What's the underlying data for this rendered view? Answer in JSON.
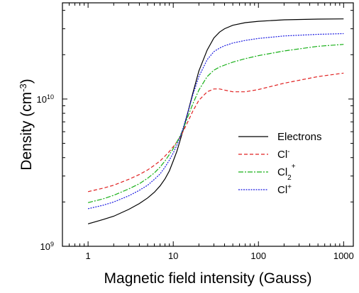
{
  "chart_data": {
    "type": "line",
    "title": "",
    "xlabel": "Magnetic field intensity (Gauss)",
    "ylabel": {
      "base": "Density (cm",
      "sup": "-3",
      "close": ")"
    },
    "xscale": "log",
    "yscale": "log",
    "xlim": [
      0.5,
      1300
    ],
    "ylim": [
      1000000000.0,
      45000000000.0
    ],
    "x_ticks": [
      {
        "value": 1,
        "label": "1"
      },
      {
        "value": 10,
        "label": "10"
      },
      {
        "value": 100,
        "label": "100"
      },
      {
        "value": 1000,
        "label": "1000"
      }
    ],
    "y_ticks": [
      {
        "value": 1000000000.0,
        "base": "10",
        "exp": "9"
      },
      {
        "value": 10000000000.0,
        "base": "10",
        "exp": "10"
      }
    ],
    "grid": false,
    "legend_position": "lower-right",
    "series": [
      {
        "legend": {
          "base": "Electrons",
          "sub": "",
          "sup": ""
        },
        "color": "#000000",
        "dash": "solid",
        "x": [
          1,
          1.5,
          2,
          3,
          4,
          5,
          6,
          7,
          8,
          9,
          10,
          11,
          12,
          13,
          15,
          17,
          20,
          25,
          30,
          35,
          40,
          50,
          70,
          100,
          200,
          500,
          1000
        ],
        "y": [
          1420000000.0,
          1520000000.0,
          1600000000.0,
          1780000000.0,
          1950000000.0,
          2130000000.0,
          2330000000.0,
          2570000000.0,
          2870000000.0,
          3250000000.0,
          3800000000.0,
          4400000000.0,
          5200000000.0,
          6100000000.0,
          8300000000.0,
          11000000000.0,
          15500000000.0,
          21500000000.0,
          26000000000.0,
          28500000000.0,
          30000000000.0,
          31700000000.0,
          33000000000.0,
          33700000000.0,
          34500000000.0,
          34900000000.0,
          35000000000.0
        ]
      },
      {
        "legend": {
          "base": "Cl",
          "sub": "",
          "sup": "-"
        },
        "color": "#e02020",
        "dash": "dashed",
        "x": [
          1,
          1.5,
          2,
          3,
          4,
          5,
          6,
          7,
          8,
          9,
          10,
          11,
          12,
          13,
          15,
          17,
          20,
          25,
          30,
          35,
          40,
          50,
          70,
          100,
          200,
          500,
          1000
        ],
        "y": [
          2350000000.0,
          2480000000.0,
          2600000000.0,
          2850000000.0,
          3070000000.0,
          3300000000.0,
          3550000000.0,
          3800000000.0,
          4100000000.0,
          4400000000.0,
          4750000000.0,
          5100000000.0,
          5500000000.0,
          6000000000.0,
          7100000000.0,
          8300000000.0,
          9800000000.0,
          11200000000.0,
          11700000000.0,
          11700000000.0,
          11500000000.0,
          11200000000.0,
          11200000000.0,
          11600000000.0,
          12800000000.0,
          14200000000.0,
          15000000000.0
        ]
      },
      {
        "legend": {
          "base": "Cl",
          "sub": "2",
          "sup": "+"
        },
        "color": "#18b018",
        "dash": "dashdot",
        "x": [
          1,
          1.5,
          2,
          3,
          4,
          5,
          6,
          7,
          8,
          9,
          10,
          11,
          12,
          13,
          15,
          17,
          20,
          25,
          30,
          35,
          40,
          50,
          70,
          100,
          200,
          500,
          1000
        ],
        "y": [
          1980000000.0,
          2100000000.0,
          2220000000.0,
          2450000000.0,
          2660000000.0,
          2900000000.0,
          3150000000.0,
          3450000000.0,
          3800000000.0,
          4200000000.0,
          4600000000.0,
          5100000000.0,
          5600000000.0,
          6200000000.0,
          7700000000.0,
          9300000000.0,
          11500000000.0,
          14200000000.0,
          15700000000.0,
          16500000000.0,
          17000000000.0,
          17800000000.0,
          18800000000.0,
          19700000000.0,
          21200000000.0,
          22800000000.0,
          23500000000.0
        ]
      },
      {
        "legend": {
          "base": "Cl",
          "sub": "",
          "sup": "+"
        },
        "color": "#1818e0",
        "dash": "dotted",
        "x": [
          1,
          1.5,
          2,
          3,
          4,
          5,
          6,
          7,
          8,
          9,
          10,
          11,
          12,
          13,
          15,
          17,
          20,
          25,
          30,
          35,
          40,
          50,
          70,
          100,
          200,
          500,
          1000
        ],
        "y": [
          1800000000.0,
          1900000000.0,
          2000000000.0,
          2200000000.0,
          2400000000.0,
          2600000000.0,
          2850000000.0,
          3100000000.0,
          3450000000.0,
          3850000000.0,
          4300000000.0,
          4850000000.0,
          5500000000.0,
          6300000000.0,
          8300000000.0,
          10700000000.0,
          14200000000.0,
          18500000000.0,
          21000000000.0,
          22200000000.0,
          23000000000.0,
          24000000000.0,
          25000000000.0,
          25800000000.0,
          26800000000.0,
          27500000000.0,
          27800000000.0
        ]
      }
    ]
  }
}
